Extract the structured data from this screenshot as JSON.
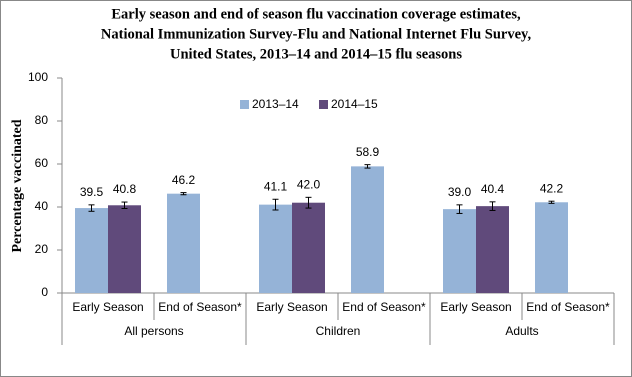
{
  "chart_data": {
    "type": "bar",
    "title": [
      "Early season and end of season flu vaccination coverage estimates,",
      "National Immunization Survey-Flu and National Internet Flu Survey,",
      "United States,  2013–14 and 2014–15 flu seasons"
    ],
    "y_label": "Percentage vaccinated",
    "groups": [
      "All persons",
      "Children",
      "Adults"
    ],
    "categories": [
      "Early Season",
      "End of Season*",
      "Early Season",
      "End of Season*",
      "Early Season",
      "End of Season*"
    ],
    "series": [
      {
        "name": "2013–14",
        "color": "#95b3d7",
        "values": [
          39.5,
          46.2,
          41.1,
          58.9,
          39.0,
          42.2
        ],
        "value_labels": [
          "39.5",
          "46.2",
          "41.1",
          "58.9",
          "39.0",
          "42.2"
        ],
        "errors": [
          1.5,
          0.5,
          2.5,
          0.8,
          2,
          0.5
        ]
      },
      {
        "name": "2014–15",
        "color": "#604a7b",
        "values": [
          40.8,
          null,
          42.0,
          null,
          40.4,
          null
        ],
        "value_labels": [
          "40.8",
          null,
          "42.0",
          null,
          "40.4",
          null
        ],
        "errors": [
          1.5,
          null,
          2.5,
          null,
          2,
          null
        ]
      }
    ],
    "ylim": [
      0,
      100
    ],
    "yticks": [
      0,
      20,
      40,
      60,
      80,
      100
    ],
    "legend": "top"
  }
}
